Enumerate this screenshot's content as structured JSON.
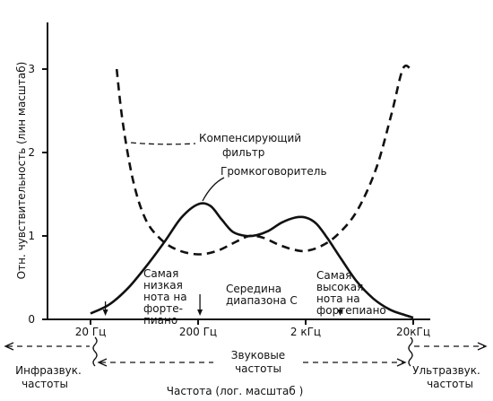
{
  "chart_data": {
    "type": "line",
    "ylabel": "Отн. чувствительность (лин масштаб)",
    "xlabel": "Частота (лог. масштаб )",
    "x_scale": "log",
    "xlim": [
      12,
      40000
    ],
    "ylim": [
      0,
      3.6
    ],
    "x_ticks": [
      {
        "value": 20,
        "label": "20 Гц"
      },
      {
        "value": 200,
        "label": "200 Гц"
      },
      {
        "value": 2000,
        "label": "2 кГц"
      },
      {
        "value": 20000,
        "label": "20кГц"
      }
    ],
    "y_ticks": [
      {
        "value": 0,
        "label": "0"
      },
      {
        "value": 1,
        "label": "1"
      },
      {
        "value": 2,
        "label": "2"
      },
      {
        "value": 3,
        "label": "3"
      }
    ],
    "series": [
      {
        "name": "Громкоговоритель",
        "style": "solid",
        "x": [
          20,
          30,
          45,
          70,
          100,
          140,
          200,
          260,
          330,
          420,
          560,
          700,
          900,
          1200,
          1600,
          2000,
          2500,
          3200,
          4300,
          6000,
          8500,
          12000,
          16000,
          20000
        ],
        "y": [
          0.07,
          0.18,
          0.38,
          0.68,
          0.95,
          1.22,
          1.38,
          1.36,
          1.2,
          1.05,
          1.0,
          1.01,
          1.06,
          1.16,
          1.22,
          1.22,
          1.15,
          0.97,
          0.72,
          0.45,
          0.25,
          0.12,
          0.06,
          0.02
        ]
      },
      {
        "name": "Компенсирующий фильтр",
        "style": "dashed",
        "x": [
          35,
          40,
          50,
          65,
          90,
          130,
          200,
          300,
          450,
          600,
          800,
          1100,
          1500,
          2000,
          2800,
          4000,
          6000,
          9000,
          12500,
          16000,
          19000
        ],
        "y": [
          3.0,
          2.35,
          1.65,
          1.2,
          0.96,
          0.83,
          0.78,
          0.82,
          0.93,
          1.0,
          0.98,
          0.9,
          0.84,
          0.82,
          0.88,
          1.02,
          1.3,
          1.8,
          2.45,
          3.0,
          3.0
        ]
      }
    ],
    "annotations": {
      "filter_label": [
        "Компенсирующий",
        "фильтр"
      ],
      "speaker_label": "Громкоговоритель",
      "low_note": {
        "value": 27.5,
        "lines": [
          "Самая",
          "низкая",
          "нота на",
          "форте-",
          "пиано"
        ]
      },
      "middle_c": {
        "value": 262,
        "lines": [
          "Середина",
          "диапазона С"
        ]
      },
      "high_note": {
        "value": 4186,
        "lines": [
          "Самая",
          "высокая",
          "нота на",
          "фортепиано"
        ]
      }
    },
    "bands": {
      "infra": [
        "Инфразвук.",
        "частоты"
      ],
      "sound": [
        "Звуковые",
        "частоты"
      ],
      "ultra": [
        "Ультразвук.",
        "частоты"
      ]
    }
  }
}
